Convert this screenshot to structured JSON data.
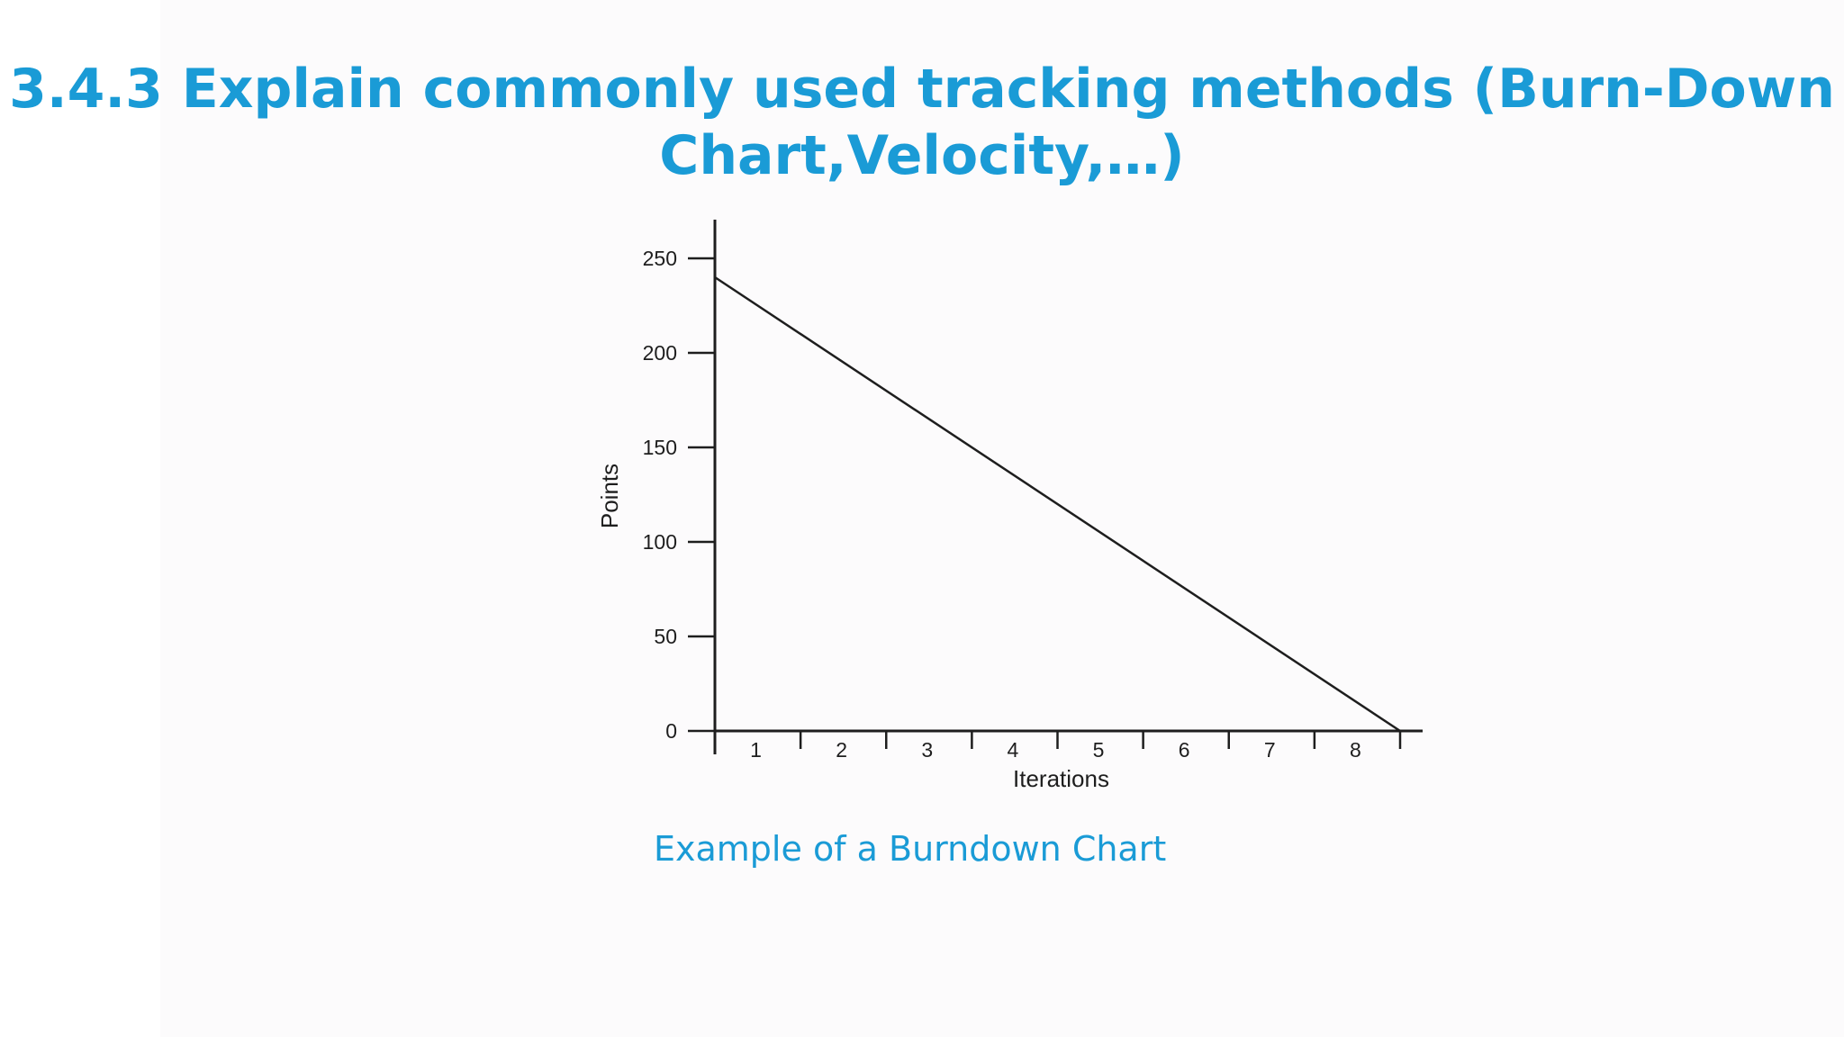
{
  "slide": {
    "title_line1": "3.4.3 Explain commonly used tracking methods (Burn-Down",
    "title_line2": "Chart,Velocity,…)",
    "caption": "Example of a Burndown Chart",
    "accent_color": "#1a9bd6"
  },
  "chart_data": {
    "type": "line",
    "xlabel": "Iterations",
    "ylabel": "Points",
    "categories": [
      "1",
      "2",
      "3",
      "4",
      "5",
      "6",
      "7",
      "8"
    ],
    "y_ticks": [
      0,
      50,
      100,
      150,
      200,
      250
    ],
    "ylim": [
      0,
      270
    ],
    "xlim": [
      0,
      8
    ],
    "series": [
      {
        "x": [
          0,
          8
        ],
        "values": [
          240,
          0
        ]
      }
    ],
    "grid": false
  }
}
